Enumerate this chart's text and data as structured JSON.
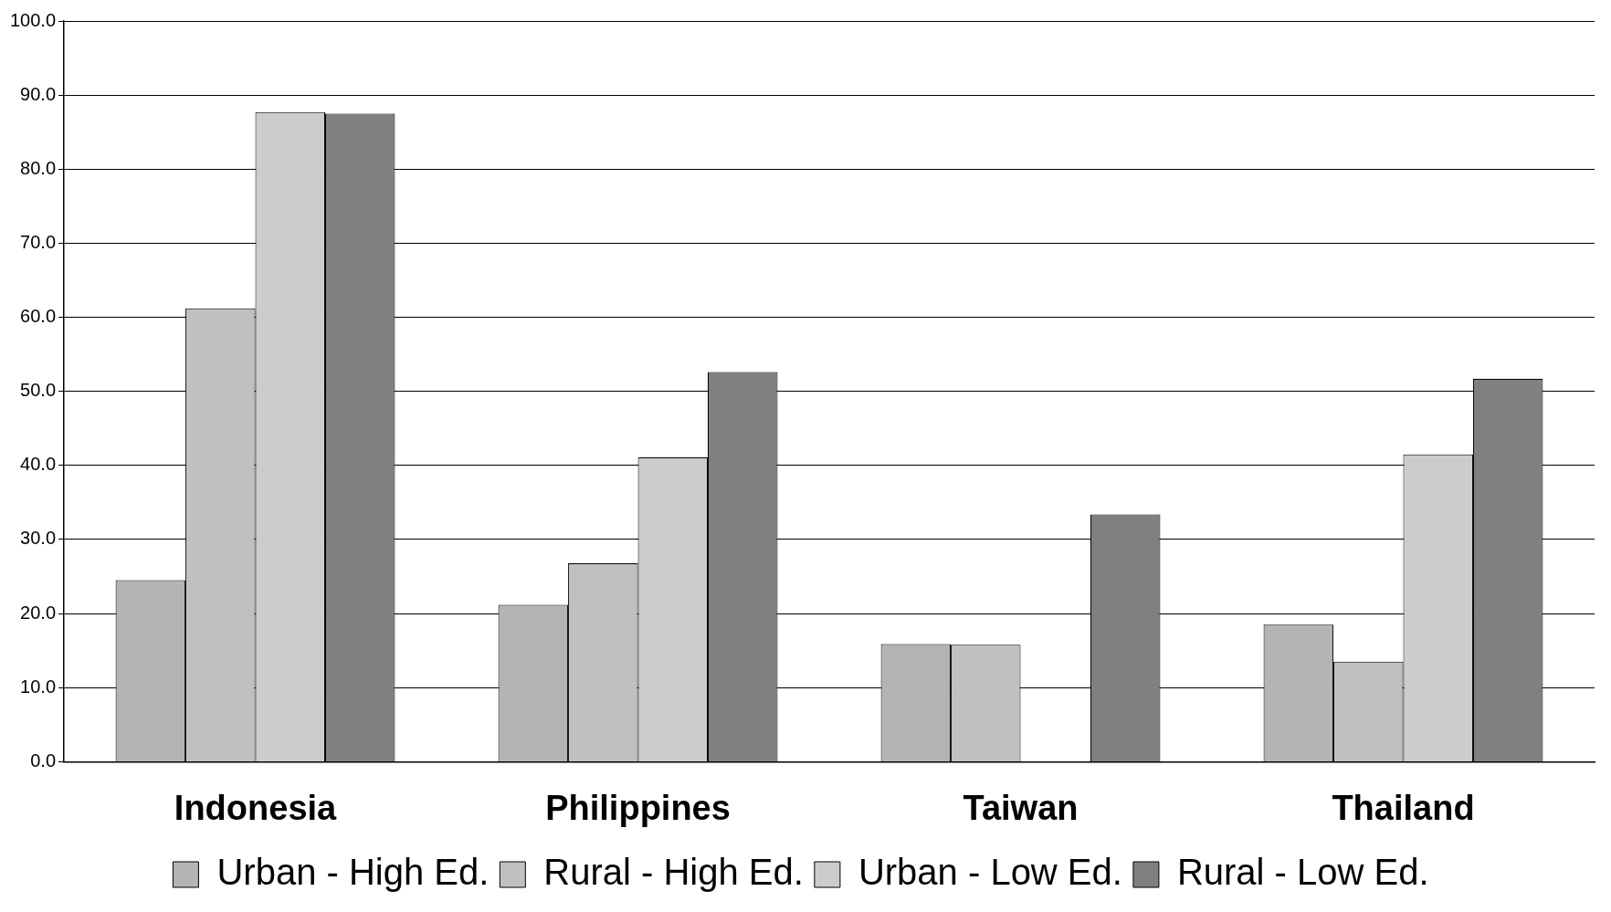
{
  "chart_data": {
    "type": "bar",
    "categories": [
      "Indonesia",
      "Philippines",
      "Taiwan",
      "Thailand"
    ],
    "series": [
      {
        "name": "Urban - High Ed.",
        "color": "#b4b4b4",
        "values": [
          24.5,
          21.2,
          15.9,
          18.5
        ]
      },
      {
        "name": "Rural - High Ed.",
        "color": "#c0c0c0",
        "values": [
          61.2,
          26.8,
          15.8,
          13.5
        ]
      },
      {
        "name": "Urban - Low Ed.",
        "color": "#cccccc",
        "values": [
          87.7,
          41.1,
          null,
          41.5
        ]
      },
      {
        "name": "Rural - Low Ed.",
        "color": "#808080",
        "values": [
          87.5,
          52.6,
          33.4,
          51.7
        ]
      }
    ],
    "ylim": [
      0,
      100
    ],
    "yticks": [
      {
        "value": 0,
        "label": "0.0"
      },
      {
        "value": 10,
        "label": "10.0"
      },
      {
        "value": 20,
        "label": "20.0"
      },
      {
        "value": 30,
        "label": "30.0"
      },
      {
        "value": 40,
        "label": "40.0"
      },
      {
        "value": 50,
        "label": "50.0"
      },
      {
        "value": 60,
        "label": "60.0"
      },
      {
        "value": 70,
        "label": "70.0"
      },
      {
        "value": 80,
        "label": "80.0"
      },
      {
        "value": 90,
        "label": "90.0"
      },
      {
        "value": 100,
        "label": "100.0"
      }
    ],
    "grid": "y",
    "legend": "bottom"
  }
}
